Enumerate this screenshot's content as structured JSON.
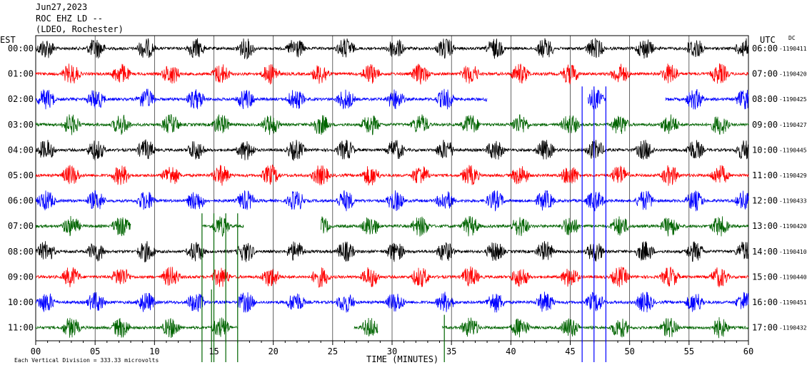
{
  "header": {
    "date": "Jun27,2023",
    "station": "ROC EHZ LD --",
    "location": "(LDEO, Rochester)"
  },
  "chart_data": {
    "type": "line",
    "xlabel": "TIME (MINUTES)",
    "x_ticks": [
      "00",
      "05",
      "10",
      "15",
      "20",
      "25",
      "30",
      "35",
      "40",
      "45",
      "50",
      "55",
      "60"
    ],
    "xlim": [
      0,
      60
    ],
    "left_axis_label": "EST",
    "right_axis_label": "UTC",
    "dc_label": "DC",
    "scale_note": "Each Vertical Division =  333.33 microvolts",
    "series_colors": [
      "#000000",
      "#ff0000",
      "#0000ff",
      "#006400"
    ],
    "rows": [
      {
        "est": "00:00",
        "utc": "06:00",
        "dc": "-1190411",
        "color": "#000000"
      },
      {
        "est": "01:00",
        "utc": "07:00",
        "dc": "-1190420",
        "color": "#ff0000"
      },
      {
        "est": "02:00",
        "utc": "08:00",
        "dc": "-1190425",
        "color": "#0000ff",
        "gaps": [
          [
            38.0,
            46.5
          ],
          [
            48.0,
            53.0
          ]
        ]
      },
      {
        "est": "03:00",
        "utc": "09:00",
        "dc": "-1190427",
        "color": "#006400"
      },
      {
        "est": "04:00",
        "utc": "10:00",
        "dc": "-1190445",
        "color": "#000000"
      },
      {
        "est": "05:00",
        "utc": "11:00",
        "dc": "-1190429",
        "color": "#ff0000"
      },
      {
        "est": "06:00",
        "utc": "12:00",
        "dc": "-1190433",
        "color": "#0000ff"
      },
      {
        "est": "07:00",
        "utc": "13:00",
        "dc": "-1190420",
        "color": "#006400",
        "gaps": [
          [
            8.0,
            14.0
          ],
          [
            17.5,
            24.0
          ]
        ]
      },
      {
        "est": "08:00",
        "utc": "14:00",
        "dc": "-1190410",
        "color": "#000000"
      },
      {
        "est": "09:00",
        "utc": "15:00",
        "dc": "-1190440",
        "color": "#ff0000"
      },
      {
        "est": "10:00",
        "utc": "16:00",
        "dc": "-1190451",
        "color": "#0000ff"
      },
      {
        "est": "11:00",
        "utc": "17:00",
        "dc": "-1190432",
        "color": "#006400",
        "gaps": [
          [
            17.0,
            26.8
          ],
          [
            28.8,
            34.2
          ]
        ]
      }
    ],
    "burst_period_minutes": 4.2,
    "spikes": [
      {
        "row": 7,
        "minute": 14.0,
        "color": "#006400"
      },
      {
        "row": 7,
        "minute": 15.0,
        "color": "#006400"
      },
      {
        "row": 7,
        "minute": 16.0,
        "color": "#006400"
      },
      {
        "row": 7,
        "minute": 17.0,
        "color": "#006400"
      },
      {
        "row": 10,
        "minute": 14.8,
        "color": "#006400"
      },
      {
        "row": 11,
        "minute": 34.4,
        "color": "#006400"
      },
      {
        "row": 2,
        "minute": 46.0,
        "color": "#0000ff"
      },
      {
        "row": 2,
        "minute": 47.0,
        "color": "#0000ff"
      },
      {
        "row": 2,
        "minute": 48.0,
        "color": "#0000ff"
      }
    ]
  }
}
